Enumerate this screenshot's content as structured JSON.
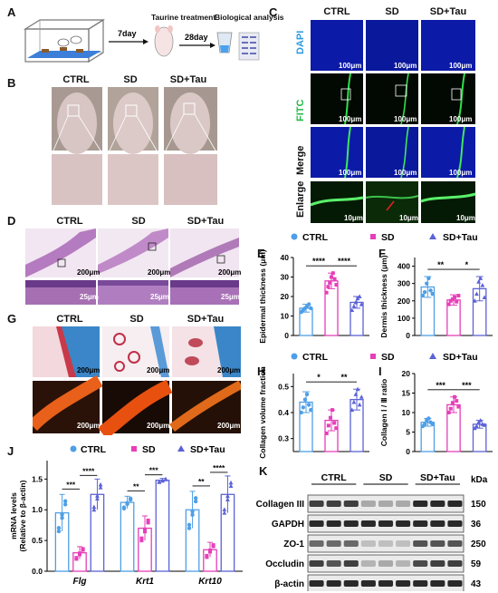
{
  "panels": {
    "A": {
      "label": "A",
      "step1": "7day",
      "step2_title": "Taurine treatment",
      "step2": "28day",
      "step3": "Biological analysis"
    },
    "B": {
      "label": "B",
      "groups": [
        "CTRL",
        "SD",
        "SD+Tau"
      ]
    },
    "C": {
      "label": "C",
      "groups": [
        "CTRL",
        "SD",
        "SD+Tau"
      ],
      "rows": [
        "DAPI",
        "FITC",
        "Merge",
        "Enlarge"
      ],
      "scale_main": "100μm",
      "scale_enlarge": "10μm"
    },
    "D": {
      "label": "D",
      "groups": [
        "CTRL",
        "SD",
        "SD+Tau"
      ],
      "scale_top": "200μm",
      "scale_bottom": "25μm"
    },
    "G": {
      "label": "G",
      "groups": [
        "CTRL",
        "SD",
        "SD+Tau"
      ],
      "scale": "200μm"
    },
    "K": {
      "label": "K",
      "groups": [
        "CTRL",
        "SD",
        "SD+Tau"
      ],
      "unit": "kDa",
      "bands": [
        {
          "name": "Collagen III",
          "kda": "150"
        },
        {
          "name": "GAPDH",
          "kda": "36"
        },
        {
          "name": "ZO-1",
          "kda": "250"
        },
        {
          "name": "Occludin",
          "kda": "59"
        },
        {
          "name": "β-actin",
          "kda": "43"
        }
      ]
    },
    "legend_groups": [
      "CTRL",
      "SD",
      "SD+Tau"
    ]
  },
  "colors": {
    "ctrl": "#4f9fe6",
    "sd": "#e63fb8",
    "tau": "#5b62d6"
  },
  "chart_data": [
    {
      "id": "E",
      "type": "bar",
      "ylabel": "Epidermal  thickness (μm)",
      "categories": [
        "CTRL",
        "SD",
        "SD+Tau"
      ],
      "values": [
        14,
        28,
        17
      ],
      "errors": [
        2,
        4,
        3
      ],
      "ylim": [
        0,
        40
      ],
      "yticks": [
        0,
        10,
        20,
        30,
        40
      ],
      "points": [
        [
          12,
          13,
          14,
          15,
          16,
          14
        ],
        [
          22,
          25,
          27,
          30,
          32,
          29,
          26
        ],
        [
          13,
          15,
          17,
          19,
          20,
          16
        ]
      ],
      "sig": [
        {
          "from": 0,
          "to": 1,
          "text": "****"
        },
        {
          "from": 1,
          "to": 2,
          "text": "****"
        }
      ]
    },
    {
      "id": "F",
      "type": "bar",
      "ylabel": "Dermis  thickness (μm)",
      "categories": [
        "CTRL",
        "SD",
        "SD+Tau"
      ],
      "values": [
        280,
        205,
        270
      ],
      "errors": [
        60,
        30,
        70
      ],
      "ylim": [
        0,
        450
      ],
      "yticks": [
        0,
        100,
        200,
        300,
        400
      ],
      "points": [
        [
          230,
          250,
          300,
          330,
          260,
          240
        ],
        [
          180,
          200,
          210,
          220,
          195,
          230
        ],
        [
          200,
          240,
          310,
          330,
          290,
          220
        ]
      ],
      "sig": [
        {
          "from": 0,
          "to": 1,
          "text": "**"
        },
        {
          "from": 1,
          "to": 2,
          "text": "*"
        }
      ]
    },
    {
      "id": "H",
      "type": "bar",
      "ylabel": "Collagen volume fraction",
      "categories": [
        "CTRL",
        "SD",
        "SD+Tau"
      ],
      "values": [
        0.44,
        0.37,
        0.45
      ],
      "errors": [
        0.04,
        0.04,
        0.04
      ],
      "ylim": [
        0.25,
        0.55
      ],
      "yticks": [
        0.3,
        0.4,
        0.5
      ],
      "points": [
        [
          0.4,
          0.42,
          0.45,
          0.47,
          0.43,
          0.41
        ],
        [
          0.32,
          0.35,
          0.38,
          0.41,
          0.36,
          0.34
        ],
        [
          0.41,
          0.44,
          0.47,
          0.49,
          0.43,
          0.46
        ]
      ],
      "sig": [
        {
          "from": 0,
          "to": 1,
          "text": "*"
        },
        {
          "from": 1,
          "to": 2,
          "text": "**"
        }
      ]
    },
    {
      "id": "I",
      "type": "bar",
      "ylabel": "Collagen Ⅰ / Ⅲ ratio",
      "categories": [
        "CTRL",
        "SD",
        "SD+Tau"
      ],
      "values": [
        7.5,
        12,
        7
      ],
      "errors": [
        1,
        2,
        1
      ],
      "ylim": [
        0,
        20
      ],
      "yticks": [
        0,
        5,
        10,
        15,
        20
      ],
      "points": [
        [
          6.5,
          7,
          8,
          8.5,
          7.5,
          7
        ],
        [
          10,
          11,
          12.5,
          14,
          13,
          11.5
        ],
        [
          6,
          6.5,
          7.5,
          8,
          7,
          6.8
        ]
      ],
      "sig": [
        {
          "from": 0,
          "to": 1,
          "text": "***"
        },
        {
          "from": 1,
          "to": 2,
          "text": "***"
        }
      ]
    },
    {
      "id": "J",
      "type": "bar",
      "ylabel": "mRNA levels (Relative to β-actin)",
      "categories": [
        "Flg",
        "Krt1",
        "Krt10"
      ],
      "series": [
        {
          "name": "CTRL",
          "values": [
            0.95,
            1.12,
            1.0
          ],
          "errors": [
            0.3,
            0.1,
            0.3
          ]
        },
        {
          "name": "SD",
          "values": [
            0.3,
            0.7,
            0.35
          ],
          "errors": [
            0.1,
            0.2,
            0.12
          ]
        },
        {
          "name": "SD+Tau",
          "values": [
            1.25,
            1.48,
            1.25
          ],
          "errors": [
            0.25,
            0.03,
            0.3
          ]
        }
      ],
      "ylim": [
        0,
        1.8
      ],
      "yticks": [
        0.0,
        0.5,
        1.0,
        1.5
      ],
      "sig": [
        {
          "cat": 0,
          "a": "***",
          "b": "****"
        },
        {
          "cat": 1,
          "a": "**",
          "b": "***"
        },
        {
          "cat": 2,
          "a": "**",
          "b": "****"
        }
      ]
    }
  ]
}
